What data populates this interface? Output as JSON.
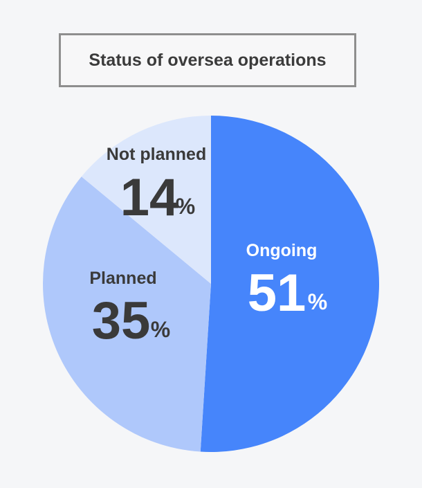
{
  "chart_data": {
    "type": "pie",
    "title": "Status of oversea operations",
    "slices": [
      {
        "label": "Ongoing",
        "value": 51,
        "unit": "%",
        "color": "#4685fb",
        "text_color": "#ffffff"
      },
      {
        "label": "Planned",
        "value": 35,
        "unit": "%",
        "color": "#afc8fb",
        "text_color": "#3a3a3a"
      },
      {
        "label": "Not planned",
        "value": 14,
        "unit": "%",
        "color": "#dce7fc",
        "text_color": "#3a3a3a"
      }
    ],
    "start": "12 o'clock",
    "direction": "clockwise",
    "legend": "none"
  }
}
